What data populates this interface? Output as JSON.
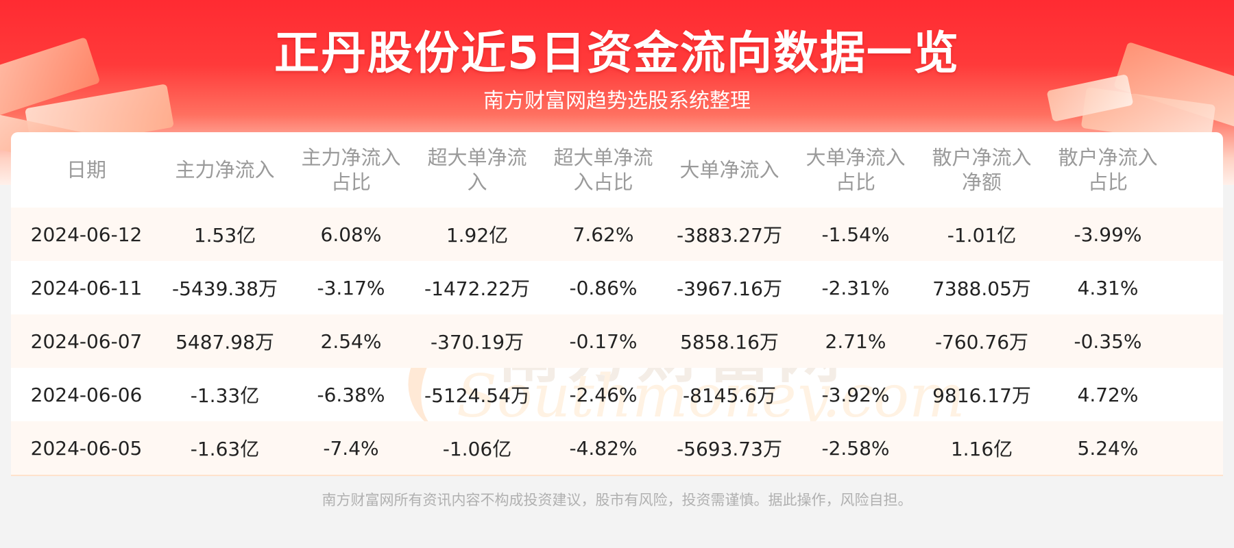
{
  "header": {
    "title": "正丹股份近5日资金流向数据一览",
    "subtitle": "南方财富网趋势选股系统整理"
  },
  "watermark": {
    "cn": "南方财富网",
    "en": "Southmoney.com"
  },
  "table": {
    "columns": [
      [
        "日期"
      ],
      [
        "主力净流入"
      ],
      [
        "主力净流入",
        "占比"
      ],
      [
        "超大单净流",
        "入"
      ],
      [
        "超大单净流",
        "入占比"
      ],
      [
        "大单净流入"
      ],
      [
        "大单净流入",
        "占比"
      ],
      [
        "散户净流入",
        "净额"
      ],
      [
        "散户净流入",
        "占比"
      ]
    ],
    "rows": [
      [
        "2024-06-12",
        "1.53亿",
        "6.08%",
        "1.92亿",
        "7.62%",
        "-3883.27万",
        "-1.54%",
        "-1.01亿",
        "-3.99%"
      ],
      [
        "2024-06-11",
        "-5439.38万",
        "-3.17%",
        "-1472.22万",
        "-0.86%",
        "-3967.16万",
        "-2.31%",
        "7388.05万",
        "4.31%"
      ],
      [
        "2024-06-07",
        "5487.98万",
        "2.54%",
        "-370.19万",
        "-0.17%",
        "5858.16万",
        "2.71%",
        "-760.76万",
        "-0.35%"
      ],
      [
        "2024-06-06",
        "-1.33亿",
        "-6.38%",
        "-5124.54万",
        "-2.46%",
        "-8145.6万",
        "-3.92%",
        "9816.17万",
        "4.72%"
      ],
      [
        "2024-06-05",
        "-1.63亿",
        "-7.4%",
        "-1.06亿",
        "-4.82%",
        "-5693.73万",
        "-2.58%",
        "1.16亿",
        "5.24%"
      ]
    ]
  },
  "footer": {
    "disclaimer": "南方财富网所有资讯内容不构成投资建议，股市有风险，投资需谨慎。据此操作，风险自担。"
  },
  "colors": {
    "banner_red": "#ff2b32",
    "row_highlight": "#fff8f3",
    "header_text": "#9a9a9a"
  }
}
